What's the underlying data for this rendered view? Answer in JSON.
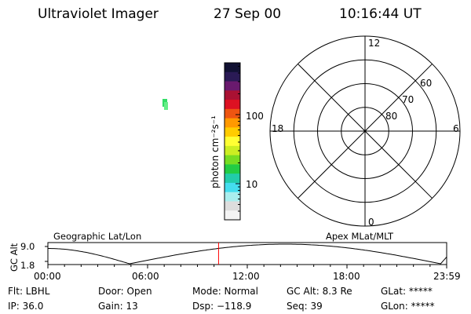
{
  "header": {
    "title": "Ultraviolet Imager",
    "date": "27 Sep 00",
    "time": "10:16:44 UT"
  },
  "colorbar": {
    "unit_label": "photon cm⁻²s⁻¹",
    "tick_labels": [
      "100",
      "10"
    ],
    "colors": [
      "#111133",
      "#2a1a55",
      "#6a1a6e",
      "#aa1133",
      "#dd1122",
      "#ee5511",
      "#ff9900",
      "#ffcc00",
      "#ffff33",
      "#ccee22",
      "#77dd22",
      "#22cc44",
      "#22ccaa",
      "#44ddee",
      "#aaeeee",
      "#dddddd",
      "#f4f4f4"
    ]
  },
  "polar_plot": {
    "mlt_labels": {
      "top": "12",
      "right": "6",
      "bottom": "0",
      "left": "18"
    },
    "lat_labels": [
      "60",
      "70",
      "80"
    ],
    "circle_color": "#000000"
  },
  "image_panel": {
    "blob_colors": [
      "#33dd66",
      "#66ee88"
    ]
  },
  "timeline": {
    "left_label": "Geographic Lat/Lon",
    "right_label": "Apex MLat/MLT",
    "ylabel": "GC Alt",
    "y_ticks": [
      "9.0",
      "1.8"
    ],
    "x_ticks": [
      "00:00",
      "06:00",
      "12:00",
      "18:00",
      "23:59"
    ],
    "marker_color": "#ff0000",
    "marker_fraction": 0.428
  },
  "status": {
    "row1": [
      {
        "key": "flt",
        "text": "Flt: LBHL"
      },
      {
        "key": "door",
        "text": "Door: Open"
      },
      {
        "key": "mode",
        "text": "Mode: Normal"
      },
      {
        "key": "gcalt",
        "text": "GC Alt: 8.3 Re"
      },
      {
        "key": "glat",
        "text": "GLat: *****"
      }
    ],
    "row2": [
      {
        "key": "ip",
        "text": "IP: 36.0"
      },
      {
        "key": "gain",
        "text": "Gain: 13"
      },
      {
        "key": "dsp",
        "text": "Dsp: −118.9"
      },
      {
        "key": "seq",
        "text": "Seq: 39"
      },
      {
        "key": "glon",
        "text": "GLon: *****"
      }
    ]
  }
}
